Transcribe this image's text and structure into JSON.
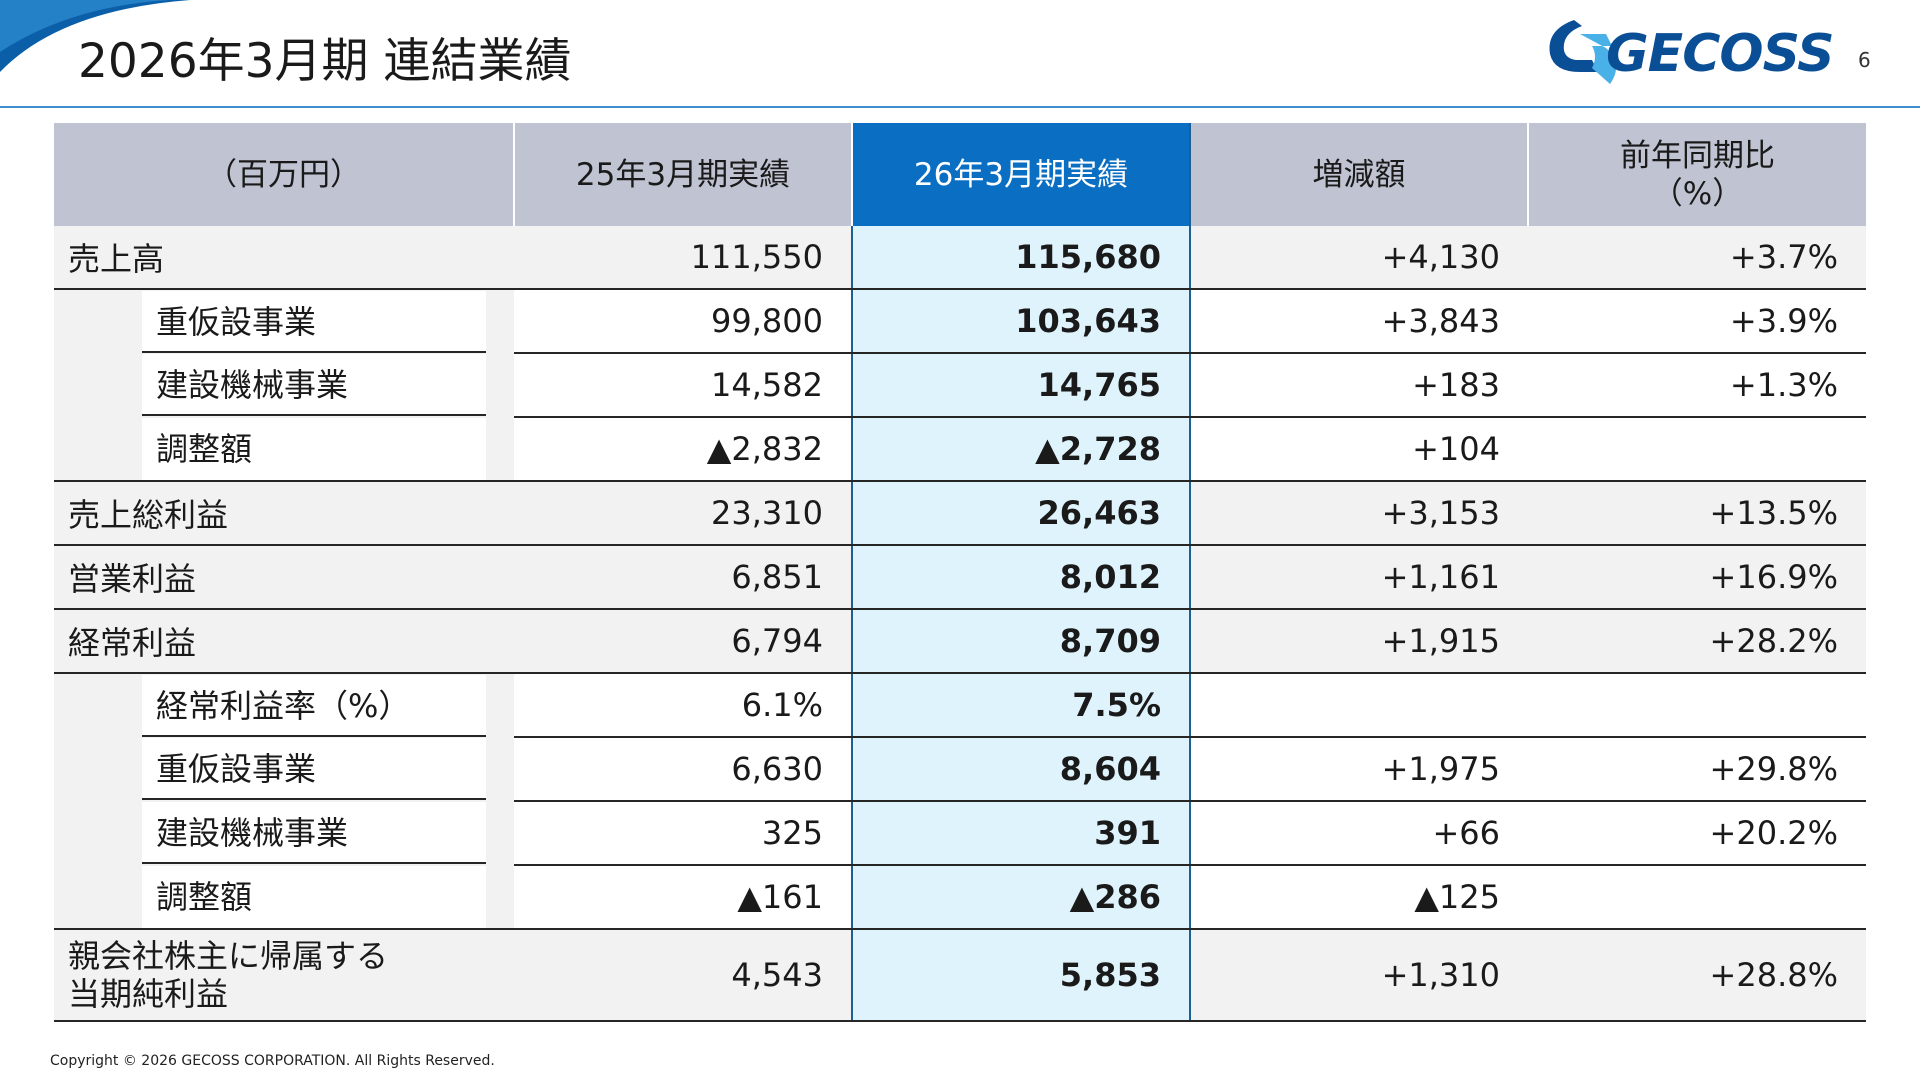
{
  "header": {
    "title": "2026年3月期 連結業績",
    "logo_text": "GECOSS",
    "page_number": "6"
  },
  "table": {
    "columns": [
      "（百万円）",
      "25年3月期実績",
      "26年3月期実績",
      "増減額",
      "前年同期比\n（%）"
    ],
    "columns_split": {
      "c4_line1": "前年同期比",
      "c4_line2": "（%）"
    },
    "rows": [
      {
        "label": "売上高",
        "prev": "111,550",
        "curr": "115,680",
        "diff": "+4,130",
        "ratio": "+3.7%"
      },
      {
        "label": "重仮設事業",
        "prev": "99,800",
        "curr": "103,643",
        "diff": "+3,843",
        "ratio": "+3.9%"
      },
      {
        "label": "建設機械事業",
        "prev": "14,582",
        "curr": "14,765",
        "diff": "+183",
        "ratio": "+1.3%"
      },
      {
        "label": "調整額",
        "prev": "▲2,832",
        "curr": "▲2,728",
        "diff": "+104",
        "ratio": ""
      },
      {
        "label": "売上総利益",
        "prev": "23,310",
        "curr": "26,463",
        "diff": "+3,153",
        "ratio": "+13.5%"
      },
      {
        "label": "営業利益",
        "prev": "6,851",
        "curr": "8,012",
        "diff": "+1,161",
        "ratio": "+16.9%"
      },
      {
        "label": "経常利益",
        "prev": "6,794",
        "curr": "8,709",
        "diff": "+1,915",
        "ratio": "+28.2%"
      },
      {
        "label": "経常利益率（%）",
        "prev": "6.1%",
        "curr": "7.5%",
        "diff": "",
        "ratio": ""
      },
      {
        "label": "重仮設事業",
        "prev": "6,630",
        "curr": "8,604",
        "diff": "+1,975",
        "ratio": "+29.8%"
      },
      {
        "label": "建設機械事業",
        "prev": "325",
        "curr": "391",
        "diff": "+66",
        "ratio": "+20.2%"
      },
      {
        "label": "調整額",
        "prev": "▲161",
        "curr": "▲286",
        "diff": "▲125",
        "ratio": ""
      },
      {
        "label_line1": "親会社株主に帰属する",
        "label_line2": "当期純利益",
        "prev": "4,543",
        "curr": "5,853",
        "diff": "+1,310",
        "ratio": "+28.8%"
      }
    ]
  },
  "footer": {
    "copyright": "Copyright © 2026 GECOSS CORPORATION. All Rights Reserved."
  },
  "colors": {
    "accent_blue": "#0a6fc2",
    "header_grey": "#c0c4d2",
    "highlight_cell": "#dff3fc",
    "logo_blue": "#0a4f95"
  }
}
